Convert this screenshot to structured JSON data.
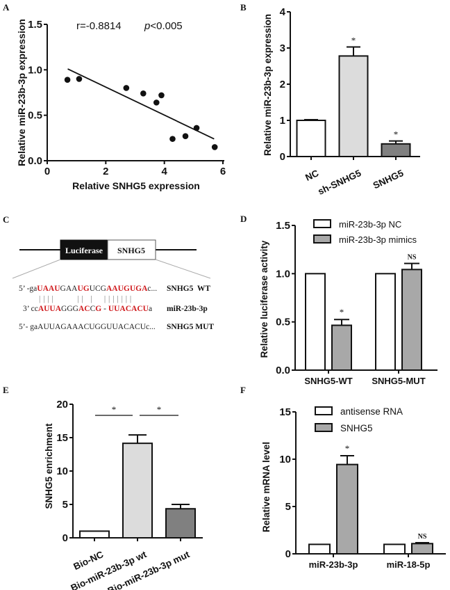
{
  "panels": {
    "A": "A",
    "B": "B",
    "C": "C",
    "D": "D",
    "E": "E",
    "F": "F"
  },
  "chart_data": [
    {
      "id": "A",
      "type": "scatter",
      "xlabel": "Relative SNHG5 expression",
      "ylabel": "Relative miR-23b-3p expression",
      "xlim": [
        0,
        6
      ],
      "ylim": [
        0,
        1.5
      ],
      "xticks": [
        "0",
        "2",
        "4",
        "6"
      ],
      "yticks": [
        "0.0",
        "0.5",
        "1.0",
        "1.5"
      ],
      "annotation_r": "r=-0.8814",
      "annotation_p_italic": "p",
      "annotation_p_rest": "<0.005",
      "points": [
        [
          0.69,
          0.89
        ],
        [
          1.09,
          0.9
        ],
        [
          2.7,
          0.8
        ],
        [
          3.28,
          0.74
        ],
        [
          3.73,
          0.64
        ],
        [
          3.9,
          0.72
        ],
        [
          4.28,
          0.24
        ],
        [
          4.72,
          0.27
        ],
        [
          5.1,
          0.36
        ],
        [
          5.72,
          0.15
        ]
      ],
      "fit_line": [
        [
          0.7,
          1.01
        ],
        [
          5.7,
          0.24
        ]
      ]
    },
    {
      "id": "B",
      "type": "bar",
      "ylabel": "Relative miR-23b-3p expression",
      "ylim": [
        0,
        4
      ],
      "yticks": [
        "0",
        "1",
        "2",
        "3",
        "4"
      ],
      "categories": [
        "NC",
        "sh-SNHG5",
        "SNHG5"
      ],
      "values": [
        1.0,
        2.78,
        0.35
      ],
      "errors": [
        0.02,
        0.25,
        0.08
      ],
      "significance": [
        "",
        "*",
        "*"
      ],
      "colors": [
        "#ffffff",
        "#dcdcdc",
        "#808080"
      ]
    },
    {
      "id": "D",
      "type": "bar",
      "ylabel": "Relative luciferase activity",
      "ylim": [
        0,
        1.5
      ],
      "yticks": [
        "0.0",
        "0.5",
        "1.0",
        "1.5"
      ],
      "categories": [
        "SNHG5-WT",
        "SNHG5-MUT"
      ],
      "series": [
        {
          "name": "miR-23b-3p NC",
          "values": [
            1.0,
            1.0
          ],
          "errors": [
            0,
            0
          ],
          "color": "#ffffff",
          "significance": [
            "",
            ""
          ]
        },
        {
          "name": "miR-23b-3p mimics",
          "values": [
            0.465,
            1.043
          ],
          "errors": [
            0.06,
            0.063
          ],
          "color": "#a8a8a8",
          "significance": [
            "*",
            "NS"
          ]
        }
      ],
      "legend": "top-right"
    },
    {
      "id": "E",
      "type": "bar",
      "ylabel": "SNHG5 enrichment",
      "ylim": [
        0,
        20
      ],
      "yticks": [
        "0",
        "5",
        "10",
        "15",
        "20"
      ],
      "categories": [
        "Bio-NC",
        "Bio-miR-23b-3p wt",
        "Bio-miR-23b-3p mut"
      ],
      "values": [
        1.0,
        14.15,
        4.35
      ],
      "errors": [
        0,
        1.25,
        0.65
      ],
      "colors": [
        "#ffffff",
        "#dcdcdc",
        "#808080"
      ],
      "comparisons": [
        {
          "from": 0,
          "to": 1,
          "label": "*"
        },
        {
          "from": 1,
          "to": 2,
          "label": "*"
        }
      ]
    },
    {
      "id": "F",
      "type": "bar",
      "ylabel": "Relative mRNA level",
      "ylim": [
        0,
        15
      ],
      "yticks": [
        "0",
        "5",
        "10",
        "15"
      ],
      "categories": [
        "miR-23b-3p",
        "miR-18-5p"
      ],
      "series": [
        {
          "name": "antisense RNA",
          "values": [
            1.0,
            1.0
          ],
          "errors": [
            0,
            0
          ],
          "color": "#ffffff",
          "significance": [
            "",
            ""
          ]
        },
        {
          "name": "SNHG5",
          "values": [
            9.44,
            1.08
          ],
          "errors": [
            0.93,
            0.1
          ],
          "color": "#a8a8a8",
          "significance": [
            "*",
            "NS"
          ]
        }
      ],
      "legend": "top"
    }
  ],
  "diagram_c": {
    "box_luciferase": "Luciferase",
    "box_snhg5": "SNHG5",
    "wt_seq": [
      {
        "t": "5’ -ga",
        "red": false
      },
      {
        "t": "UAAU",
        "red": true
      },
      {
        "t": "GAA",
        "red": false
      },
      {
        "t": "UG",
        "red": true
      },
      {
        "t": "UCG",
        "red": false
      },
      {
        "t": "AAUGUGA",
        "red": true
      },
      {
        "t": "c...",
        "red": false
      }
    ],
    "pairing": "| | | |          | |   |     | | | | | | |",
    "mir_seq": [
      {
        "t": "3’ cc",
        "red": false
      },
      {
        "t": "AUUA",
        "red": true
      },
      {
        "t": "GGG",
        "red": false
      },
      {
        "t": "AC",
        "red": true
      },
      {
        "t": "C",
        "red": false
      },
      {
        "t": "G",
        "red": true
      },
      {
        "t": " - ",
        "red": false
      },
      {
        "t": "UUACACU",
        "red": true
      },
      {
        "t": "a",
        "red": false
      }
    ],
    "mut_seq": "5’- gaAUUAGAAACUGGUUACACUc...",
    "label_wt": "SNHG5  WT",
    "label_mir": "miR-23b-3p",
    "label_mut": "SNHG5 MUT"
  }
}
